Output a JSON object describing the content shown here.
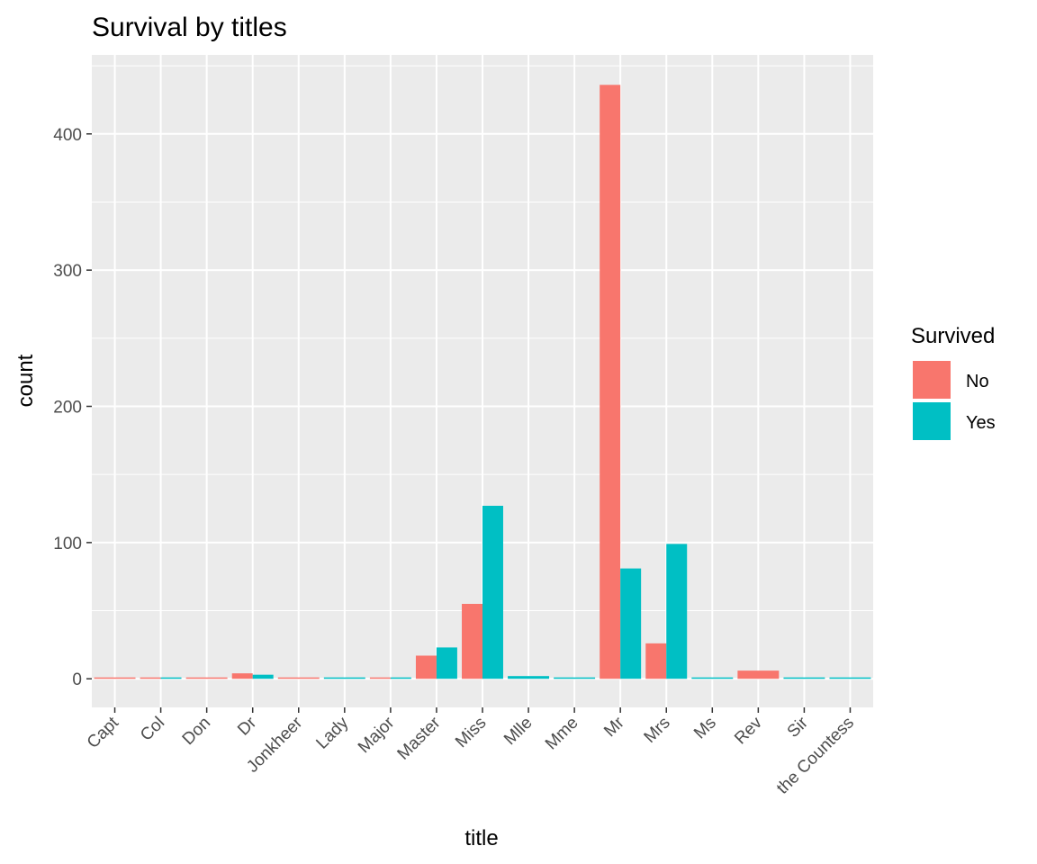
{
  "chart_data": {
    "type": "bar",
    "title": "Survival by titles",
    "xlabel": "title",
    "ylabel": "count",
    "categories": [
      "Capt",
      "Col",
      "Don",
      "Dr",
      "Jonkheer",
      "Lady",
      "Major",
      "Master",
      "Miss",
      "Mlle",
      "Mme",
      "Mr",
      "Mrs",
      "Ms",
      "Rev",
      "Sir",
      "the Countess"
    ],
    "series": [
      {
        "name": "No",
        "color": "#F8766D",
        "values": [
          1,
          1,
          1,
          4,
          1,
          null,
          1,
          17,
          55,
          null,
          null,
          436,
          26,
          null,
          6,
          null,
          null
        ]
      },
      {
        "name": "Yes",
        "color": "#00BFC4",
        "values": [
          null,
          1,
          null,
          3,
          null,
          1,
          1,
          23,
          127,
          2,
          1,
          81,
          99,
          1,
          null,
          1,
          1
        ]
      }
    ],
    "ylim": [
      -21,
      458
    ],
    "yticks": [
      0,
      100,
      200,
      300,
      400
    ],
    "grid": true,
    "legend": {
      "title": "Survived",
      "position": "right"
    }
  }
}
